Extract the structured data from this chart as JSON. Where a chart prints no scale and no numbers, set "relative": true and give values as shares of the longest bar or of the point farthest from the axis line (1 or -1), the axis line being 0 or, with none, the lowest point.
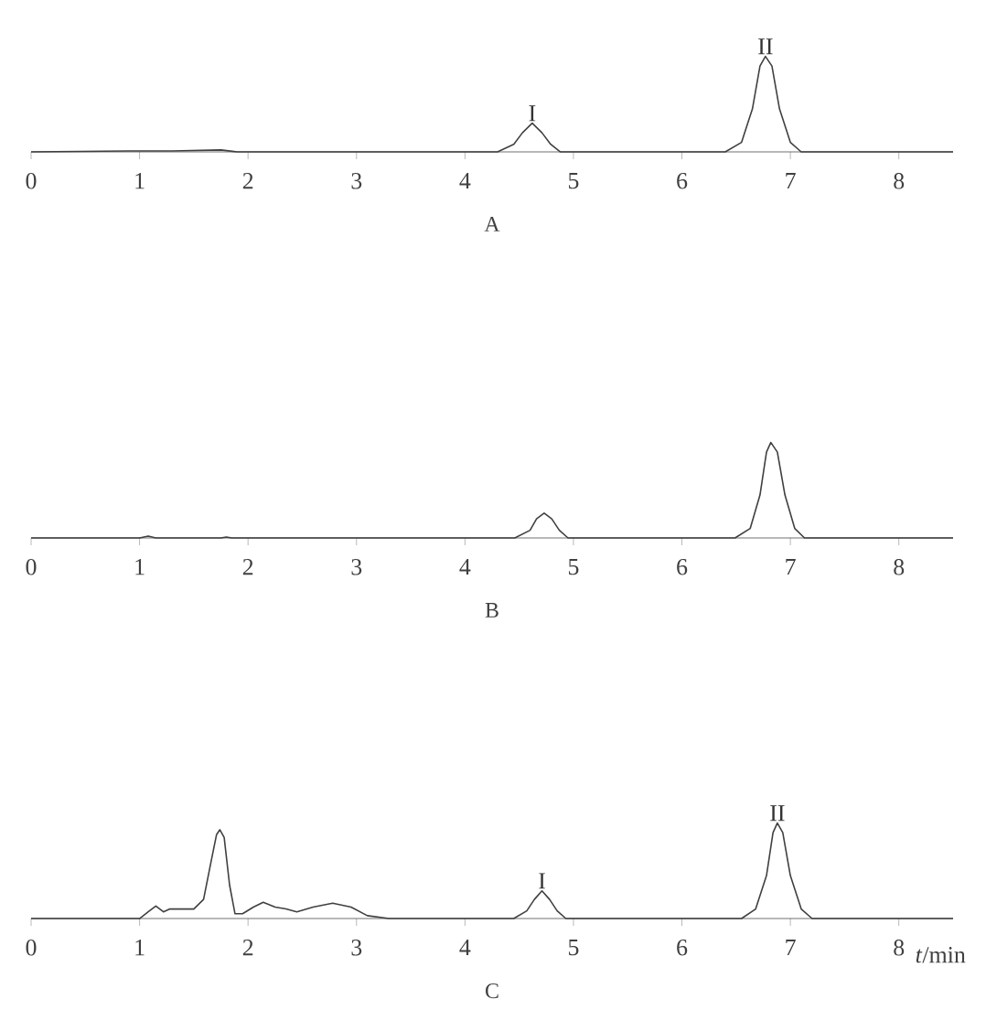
{
  "chart_data": [
    {
      "type": "line",
      "title": "A",
      "relative": true,
      "color": "#404040",
      "xlim": [
        0,
        8.5
      ],
      "xticks": [
        0,
        1,
        2,
        3,
        4,
        5,
        6,
        7,
        8
      ],
      "x": [
        0,
        0.9,
        1.3,
        1.75,
        1.9,
        4.3,
        4.45,
        4.53,
        4.62,
        4.71,
        4.79,
        4.88,
        6.4,
        6.55,
        6.65,
        6.72,
        6.77,
        6.83,
        6.9,
        7.0,
        7.1,
        8.5
      ],
      "values": [
        0,
        0.01,
        0.01,
        0.02,
        0,
        0,
        0.08,
        0.2,
        0.3,
        0.2,
        0.08,
        0,
        0,
        0.1,
        0.45,
        0.9,
        1,
        0.9,
        0.45,
        0.1,
        0,
        0
      ],
      "annotations": [
        {
          "text": "I",
          "x": 4.62,
          "y": 0.3
        },
        {
          "text": "II",
          "x": 6.77,
          "y": 1
        }
      ]
    },
    {
      "type": "line",
      "title": "B",
      "relative": true,
      "color": "#404040",
      "xlim": [
        0,
        8.5
      ],
      "xticks": [
        0,
        1,
        2,
        3,
        4,
        5,
        6,
        7,
        8
      ],
      "x": [
        0,
        1.0,
        1.08,
        1.15,
        1.75,
        1.8,
        1.85,
        4.46,
        4.6,
        4.66,
        4.73,
        4.8,
        4.87,
        4.95,
        6.49,
        6.63,
        6.72,
        6.78,
        6.82,
        6.88,
        6.95,
        7.04,
        7.13,
        8.5
      ],
      "values": [
        0,
        0,
        0.02,
        0,
        0,
        0.01,
        0,
        0,
        0.08,
        0.2,
        0.26,
        0.2,
        0.08,
        0,
        0,
        0.1,
        0.45,
        0.9,
        1,
        0.9,
        0.45,
        0.1,
        0,
        0
      ]
    },
    {
      "type": "line",
      "title": "C",
      "xlabel": "*t*/min",
      "relative": true,
      "color": "#404040",
      "xlim": [
        0,
        8.5
      ],
      "xticks": [
        0,
        1,
        2,
        3,
        4,
        5,
        6,
        7,
        8
      ],
      "x": [
        0,
        1.0,
        1.08,
        1.15,
        1.22,
        1.28,
        1.5,
        1.59,
        1.66,
        1.71,
        1.74,
        1.78,
        1.83,
        1.88,
        1.95,
        2.05,
        2.14,
        2.25,
        2.35,
        2.45,
        2.6,
        2.78,
        2.95,
        3.1,
        3.3,
        4.45,
        4.57,
        4.64,
        4.71,
        4.78,
        4.85,
        4.93,
        6.55,
        6.68,
        6.78,
        6.84,
        6.88,
        6.93,
        7.0,
        7.1,
        7.2,
        8.5
      ],
      "values": [
        0,
        0,
        0.07,
        0.13,
        0.07,
        0.1,
        0.1,
        0.2,
        0.6,
        0.88,
        0.93,
        0.85,
        0.35,
        0.05,
        0.05,
        0.12,
        0.17,
        0.12,
        0.1,
        0.07,
        0.12,
        0.16,
        0.12,
        0.03,
        0,
        0,
        0.08,
        0.2,
        0.29,
        0.2,
        0.08,
        0,
        0,
        0.1,
        0.45,
        0.9,
        1,
        0.9,
        0.45,
        0.1,
        0,
        0
      ],
      "annotations": [
        {
          "text": "I",
          "x": 4.71,
          "y": 0.29
        },
        {
          "text": "II",
          "x": 6.88,
          "y": 1
        }
      ]
    }
  ]
}
